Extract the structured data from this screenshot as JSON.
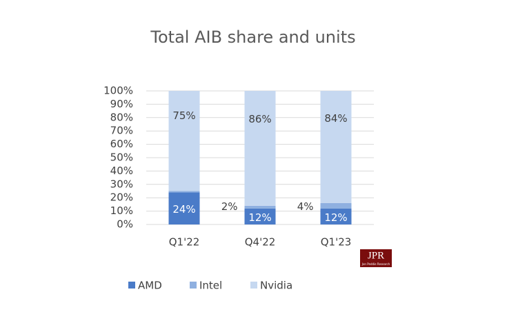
{
  "chart_data": {
    "type": "stacked_bar",
    "title": "Total AIB share and units",
    "categories": [
      "Q1'22",
      "Q4'22",
      "Q1'23"
    ],
    "series": [
      {
        "name": "AMD",
        "color": "#4a7bc8",
        "values": [
          24,
          12,
          12
        ],
        "value_labels": [
          "24%",
          "12%",
          "12%"
        ]
      },
      {
        "name": "Intel",
        "color": "#8fb0e0",
        "values": [
          1,
          2,
          4
        ],
        "value_labels": [
          null,
          "2%",
          "4%"
        ]
      },
      {
        "name": "Nvidia",
        "color": "#c6d8f0",
        "values": [
          75,
          86,
          84
        ],
        "value_labels": [
          "75%",
          "86%",
          "84%"
        ]
      }
    ],
    "ylim": [
      0,
      100
    ],
    "yticks": [
      {
        "value": 0,
        "label": "0%"
      },
      {
        "value": 10,
        "label": "10%"
      },
      {
        "value": 20,
        "label": "20%"
      },
      {
        "value": 30,
        "label": "30%"
      },
      {
        "value": 40,
        "label": "40%"
      },
      {
        "value": 50,
        "label": "50%"
      },
      {
        "value": 60,
        "label": "60%"
      },
      {
        "value": 70,
        "label": "70%"
      },
      {
        "value": 80,
        "label": "80%"
      },
      {
        "value": 90,
        "label": "90%"
      },
      {
        "value": 100,
        "label": "100%"
      }
    ],
    "grid": true,
    "legend": "bottom"
  },
  "logo": {
    "text": "JPR",
    "subtext": "Jon Peddie Research"
  }
}
